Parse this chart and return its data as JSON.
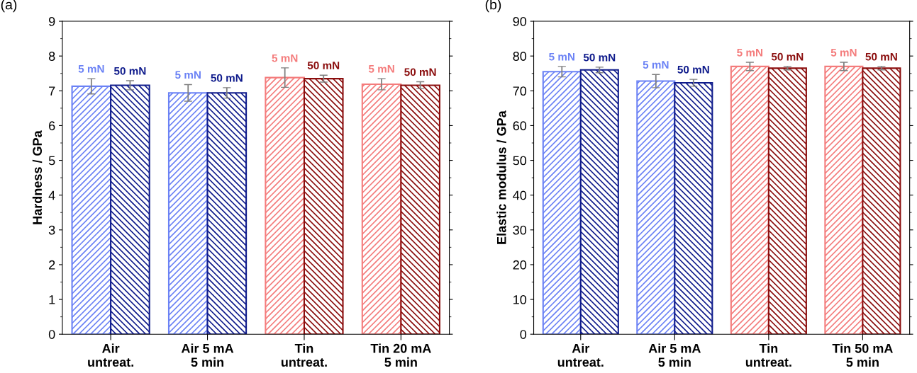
{
  "chart_data": [
    {
      "type": "bar",
      "title": "(a)",
      "ylabel": "Hardness / GPa",
      "categories": [
        "Air\nuntreat.",
        "Air 5 mA\n5 min",
        "Tin\nuntreat.",
        "Tin 20 mA\n5 min"
      ],
      "ylim": [
        0,
        9
      ],
      "yticks": [
        0,
        1,
        2,
        3,
        4,
        5,
        6,
        7,
        8,
        9
      ],
      "grid": false,
      "legend": false,
      "series": [
        {
          "name": "5 mN",
          "colors": [
            "#6b82f5",
            "#6b82f5",
            "#f47c7c",
            "#f47c7c"
          ],
          "values": [
            7.13,
            6.94,
            7.38,
            7.19
          ],
          "errors": [
            0.22,
            0.24,
            0.28,
            0.16
          ]
        },
        {
          "name": "50 mN",
          "colors": [
            "#101c8c",
            "#101c8c",
            "#8b0e0e",
            "#8b0e0e"
          ],
          "values": [
            7.16,
            6.94,
            7.35,
            7.16
          ],
          "errors": [
            0.13,
            0.15,
            0.1,
            0.1
          ]
        }
      ]
    },
    {
      "type": "bar",
      "title": "(b)",
      "ylabel": "Elastic modulus / GPa",
      "categories": [
        "Air\nuntreat.",
        "Air 5 mA\n5 min",
        "Tin\nuntreat.",
        "Tin 50 mA\n5 min"
      ],
      "ylim": [
        0,
        90
      ],
      "yticks": [
        0,
        10,
        20,
        30,
        40,
        50,
        60,
        70,
        80,
        90
      ],
      "grid": false,
      "legend": false,
      "series": [
        {
          "name": "5 mN",
          "colors": [
            "#6b82f5",
            "#6b82f5",
            "#f47c7c",
            "#f47c7c"
          ],
          "values": [
            75.5,
            72.8,
            77.0,
            77.0
          ],
          "errors": [
            1.5,
            1.9,
            1.2,
            1.2
          ]
        },
        {
          "name": "50 mN",
          "colors": [
            "#101c8c",
            "#101c8c",
            "#8b0e0e",
            "#8b0e0e"
          ],
          "values": [
            76.0,
            72.3,
            76.5,
            76.5
          ],
          "errors": [
            0.8,
            1.0,
            0.5,
            0.5
          ]
        }
      ]
    }
  ]
}
